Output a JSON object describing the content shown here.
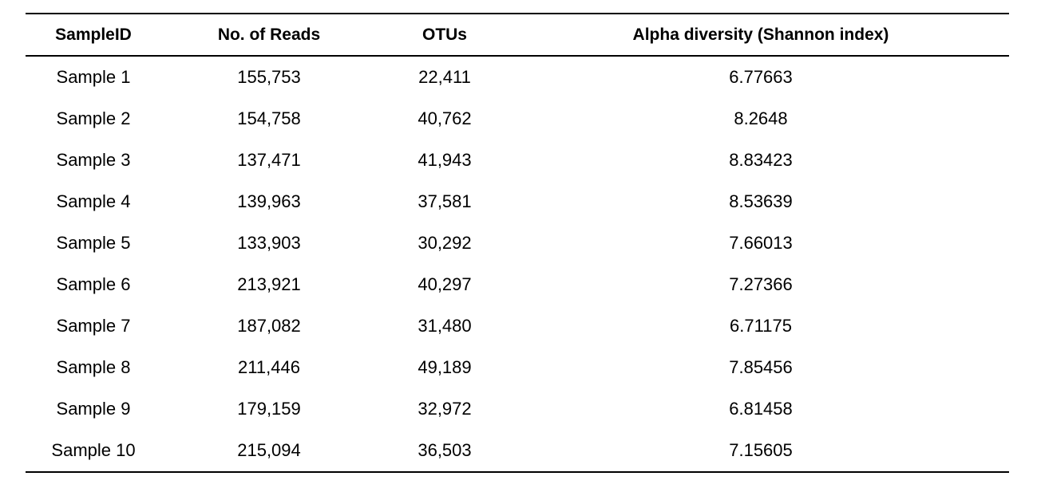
{
  "table": {
    "headers": [
      "SampleID",
      "No. of Reads",
      "OTUs",
      "Alpha diversity (Shannon index)"
    ],
    "rows": [
      [
        "Sample 1",
        "155,753",
        "22,411",
        "6.77663"
      ],
      [
        "Sample 2",
        "154,758",
        "40,762",
        "8.2648"
      ],
      [
        "Sample 3",
        "137,471",
        "41,943",
        "8.83423"
      ],
      [
        "Sample 4",
        "139,963",
        "37,581",
        "8.53639"
      ],
      [
        "Sample 5",
        "133,903",
        "30,292",
        "7.66013"
      ],
      [
        "Sample 6",
        "213,921",
        "40,297",
        "7.27366"
      ],
      [
        "Sample 7",
        "187,082",
        "31,480",
        "6.71175"
      ],
      [
        "Sample 8",
        "211,446",
        "49,189",
        "7.85456"
      ],
      [
        "Sample 9",
        "179,159",
        "32,972",
        "6.81458"
      ],
      [
        "Sample 10",
        "215,094",
        "36,503",
        "7.15605"
      ]
    ]
  }
}
